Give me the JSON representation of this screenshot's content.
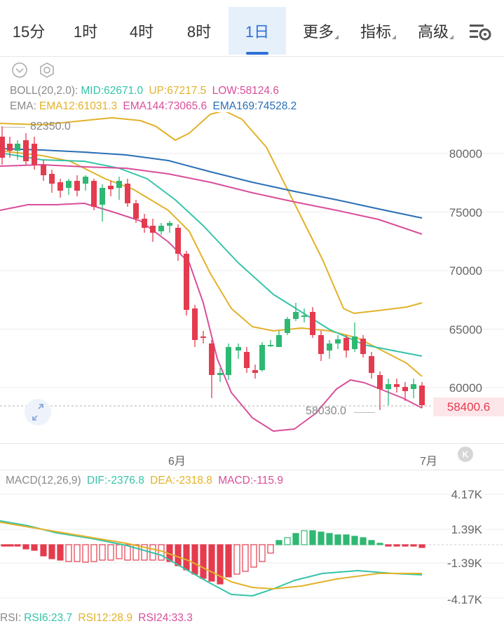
{
  "tabs": [
    {
      "label": "15分",
      "active": false
    },
    {
      "label": "1时",
      "active": false
    },
    {
      "label": "4时",
      "active": false
    },
    {
      "label": "8时",
      "active": false
    },
    {
      "label": "1日",
      "active": true
    },
    {
      "label": "更多",
      "active": false,
      "dropdown": true
    },
    {
      "label": "指标",
      "active": false,
      "dropdown": true
    },
    {
      "label": "高级",
      "active": false,
      "dropdown": true
    }
  ],
  "icons": {
    "settings": "chart-settings-icon",
    "collapse": "collapse-icon",
    "gear": "gear-icon",
    "expand": "expand-arrows-icon",
    "back": "back-k-icon"
  },
  "boll": {
    "name": "BOLL(20,2.0):",
    "mid": "MID:62671.0",
    "up": "UP:67217.5",
    "low": "LOW:58124.6"
  },
  "ema": {
    "name": "EMA:",
    "e12": "EMA12:61031.3",
    "e144": "EMA144:73065.6",
    "e169": "EMA169:74528.2"
  },
  "price_axis": [
    "80000",
    "75000",
    "70000",
    "65000",
    "60000"
  ],
  "marks": {
    "high": "82350.0",
    "low": "58030.0"
  },
  "current_price": "58400.6",
  "dates": [
    "6月",
    "7月"
  ],
  "macd": {
    "name": "MACD(12,26,9)",
    "dif": "DIF:-2376.8",
    "dea": "DEA:-2318.8",
    "macd": "MACD:-115.9"
  },
  "macd_axis": [
    "4.17K",
    "1.39K",
    "-1.39K",
    "-4.17K"
  ],
  "rsi": {
    "name": "RSI:",
    "r6": "RSI6:23.7",
    "r12": "RSI12:28.9",
    "r24": "RSI24:33.3"
  },
  "colors": {
    "up": "#2eb872",
    "down": "#e43b4e",
    "accent": "#2f6fd6",
    "mid": "#35c4a8",
    "band": "#e2b22a",
    "low": "#d94f9a",
    "ema169": "#2a6fb5"
  }
}
